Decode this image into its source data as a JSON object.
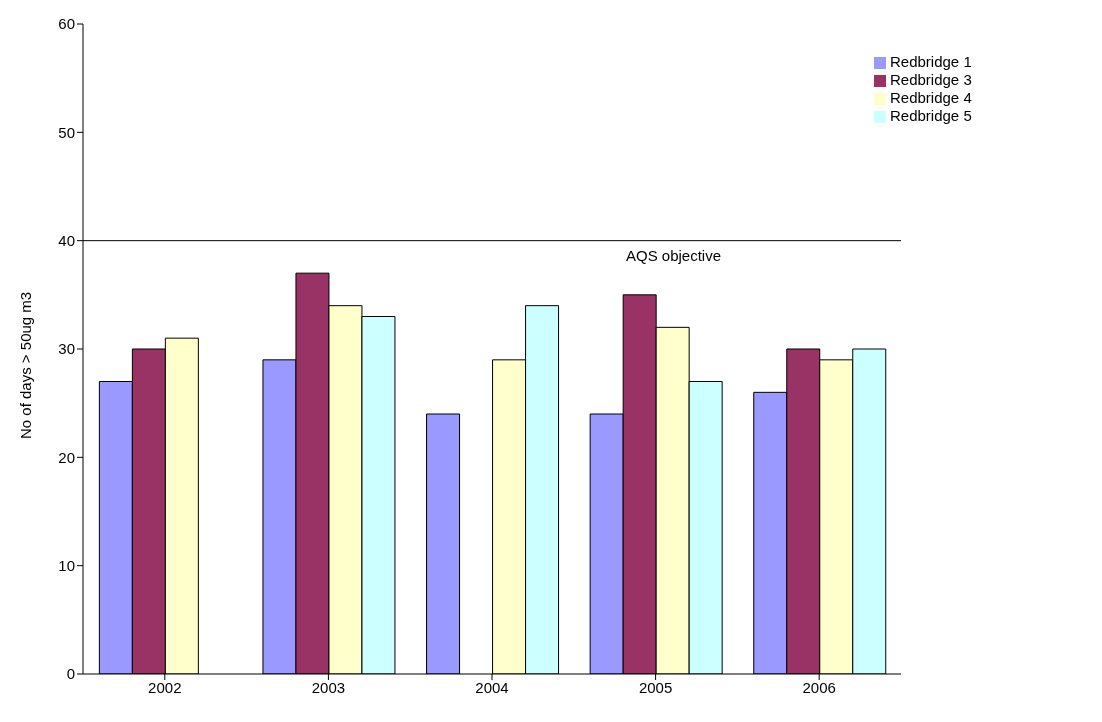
{
  "chart_data": {
    "type": "bar",
    "ylabel": "No of days > 50ug m3",
    "categories": [
      "2002",
      "2003",
      "2004",
      "2005",
      "2006"
    ],
    "series": [
      {
        "name": "Redbridge 1",
        "color": "#9999ff",
        "values": [
          27,
          29,
          24,
          24,
          26
        ]
      },
      {
        "name": "Redbridge 3",
        "color": "#993366",
        "values": [
          30,
          37,
          null,
          35,
          30
        ]
      },
      {
        "name": "Redbridge 4",
        "color": "#ffffcc",
        "values": [
          31,
          34,
          29,
          32,
          29
        ]
      },
      {
        "name": "Redbridge 5",
        "color": "#ccffff",
        "values": [
          null,
          33,
          34,
          27,
          30
        ]
      }
    ],
    "ylim": [
      0,
      60
    ],
    "yticks": [
      0,
      10,
      20,
      30,
      40,
      50,
      60
    ],
    "grid": false,
    "legend": "top right",
    "ref_lines": [
      {
        "axis": "y",
        "value": 40,
        "label": "AQS objective",
        "color": "#000000"
      }
    ]
  }
}
